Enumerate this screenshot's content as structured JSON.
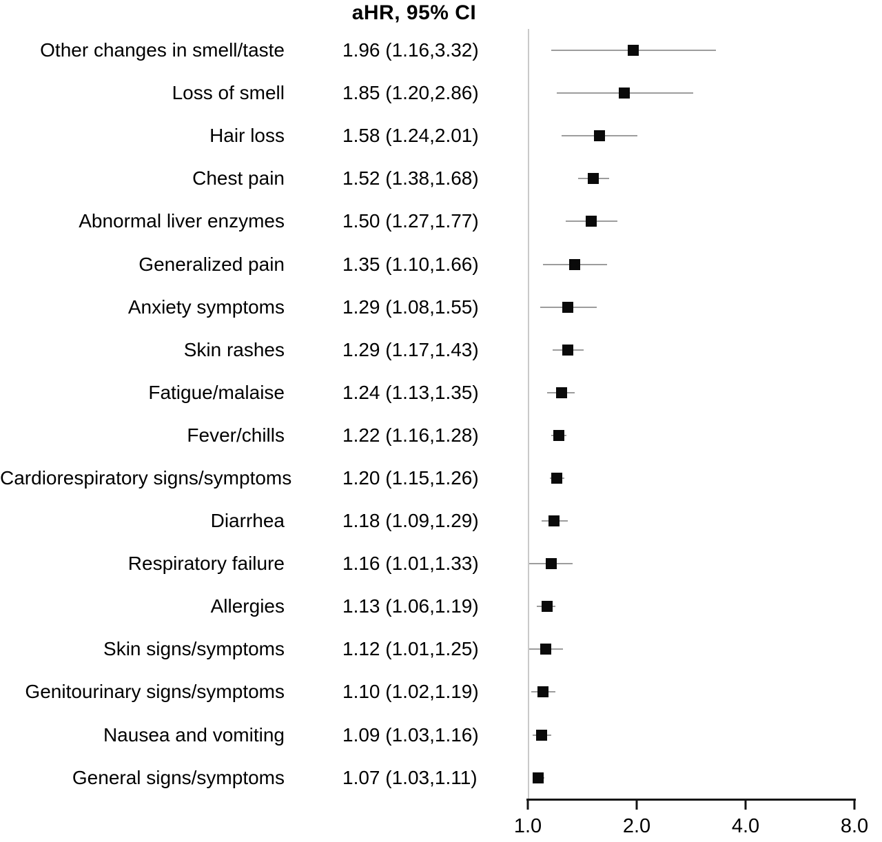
{
  "chart_data": {
    "type": "scatter",
    "subtype": "forest-plot",
    "title": "aHR, 95% CI",
    "categories": [
      "Other changes in smell/taste",
      "Loss of smell",
      "Hair loss",
      "Chest pain",
      "Abnormal liver enzymes",
      "Generalized pain",
      "Anxiety symptoms",
      "Skin rashes",
      "Fatigue/malaise",
      "Fever/chills",
      "Cardiorespiratory signs/symptoms",
      "Diarrhea",
      "Respiratory failure",
      "Allergies",
      "Skin signs/symptoms",
      "Genitourinary signs/symptoms",
      "Nausea and vomiting",
      "General signs/symptoms"
    ],
    "value_labels": [
      "1.96 (1.16,3.32)",
      "1.85 (1.20,2.86)",
      "1.58 (1.24,2.01)",
      "1.52 (1.38,1.68)",
      "1.50 (1.27,1.77)",
      "1.35 (1.10,1.66)",
      "1.29 (1.08,1.55)",
      "1.29 (1.17,1.43)",
      "1.24 (1.13,1.35)",
      "1.22 (1.16,1.28)",
      "1.20 (1.15,1.26)",
      "1.18 (1.09,1.29)",
      "1.16 (1.01,1.33)",
      "1.13 (1.06,1.19)",
      "1.12 (1.01,1.25)",
      "1.10 (1.02,1.19)",
      "1.09 (1.03,1.16)",
      "1.07 (1.03,1.11)"
    ],
    "series": [
      {
        "name": "aHR",
        "values": [
          1.96,
          1.85,
          1.58,
          1.52,
          1.5,
          1.35,
          1.29,
          1.29,
          1.24,
          1.22,
          1.2,
          1.18,
          1.16,
          1.13,
          1.12,
          1.1,
          1.09,
          1.07
        ]
      },
      {
        "name": "ci_low",
        "values": [
          1.16,
          1.2,
          1.24,
          1.38,
          1.27,
          1.1,
          1.08,
          1.17,
          1.13,
          1.16,
          1.15,
          1.09,
          1.01,
          1.06,
          1.01,
          1.02,
          1.03,
          1.03
        ]
      },
      {
        "name": "ci_high",
        "values": [
          3.32,
          2.86,
          2.01,
          1.68,
          1.77,
          1.66,
          1.55,
          1.43,
          1.35,
          1.28,
          1.26,
          1.29,
          1.33,
          1.19,
          1.25,
          1.19,
          1.16,
          1.11
        ]
      }
    ],
    "xscale": "log",
    "xlim": [
      1.0,
      8.0
    ],
    "xticks": [
      1.0,
      2.0,
      4.0,
      8.0
    ],
    "xtick_labels": [
      "1.0",
      "2.0",
      "4.0",
      "8.0"
    ],
    "xlabel": "",
    "ylabel": "",
    "legend": false,
    "grid": false
  },
  "colors": {
    "marker": "#0a0a0a",
    "ci_line": "#9c9c9c",
    "axis_line": "#141414",
    "plot_border": "#c9c9c9",
    "text": "#000000",
    "background": "#ffffff"
  }
}
